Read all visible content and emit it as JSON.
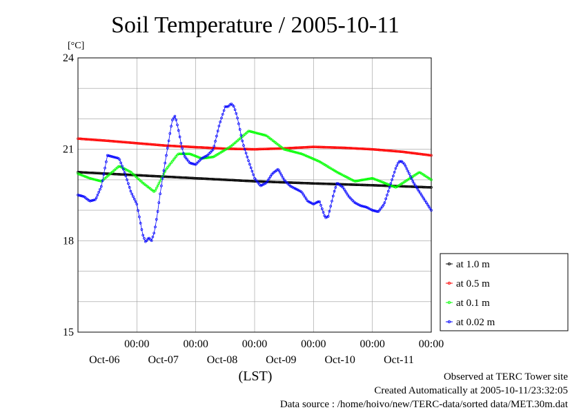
{
  "chart_data": {
    "type": "line",
    "title": "Soil Temperature / 2005-10-11",
    "ylabel": "[°C]",
    "xlabel": "(LST)",
    "ylim": [
      15,
      24
    ],
    "yticks": [
      "15",
      "18",
      "21",
      "24"
    ],
    "xticks": [
      {
        "time": "00:00",
        "date": "Oct-06"
      },
      {
        "time": "00:00",
        "date": "Oct-07"
      },
      {
        "time": "00:00",
        "date": "Oct-08"
      },
      {
        "time": "00:00",
        "date": "Oct-09"
      },
      {
        "time": "00:00",
        "date": "Oct-10"
      },
      {
        "time": "00:00",
        "date": "Oct-11"
      }
    ],
    "x_unit": "days",
    "x_range": [
      -1,
      5
    ],
    "grid": true,
    "legend_position": "bottom-right",
    "series": [
      {
        "name": "at 1.0 m",
        "color": "#000000",
        "x": [
          -1,
          0,
          1,
          2,
          3,
          4,
          5
        ],
        "y": [
          20.25,
          20.15,
          20.05,
          19.95,
          19.88,
          19.82,
          19.75
        ]
      },
      {
        "name": "at 0.5 m",
        "color": "#ff0000",
        "x": [
          -1,
          -0.5,
          0,
          0.5,
          1,
          1.5,
          2,
          2.5,
          3,
          3.5,
          4,
          4.5,
          5
        ],
        "y": [
          21.35,
          21.28,
          21.2,
          21.12,
          21.07,
          21.02,
          21.0,
          21.03,
          21.08,
          21.05,
          21.0,
          20.92,
          20.8
        ]
      },
      {
        "name": "at 0.1 m",
        "color": "#00ff00",
        "x": [
          -1,
          -0.8,
          -0.6,
          -0.45,
          -0.3,
          -0.1,
          0.1,
          0.3,
          0.5,
          0.7,
          0.9,
          1.1,
          1.3,
          1.6,
          1.9,
          2.2,
          2.5,
          2.8,
          3.1,
          3.4,
          3.7,
          4.0,
          4.2,
          4.4,
          4.6,
          4.8,
          5.0
        ],
        "y": [
          20.2,
          20.05,
          19.95,
          20.2,
          20.45,
          20.25,
          19.9,
          19.6,
          20.35,
          20.85,
          20.85,
          20.7,
          20.75,
          21.1,
          21.6,
          21.45,
          21.0,
          20.85,
          20.6,
          20.25,
          19.95,
          20.05,
          19.9,
          19.75,
          20.0,
          20.25,
          20.0
        ]
      },
      {
        "name": "at 0.02 m",
        "color": "#0000ff",
        "x": [
          -1,
          -0.9,
          -0.8,
          -0.7,
          -0.6,
          -0.5,
          -0.4,
          -0.3,
          -0.2,
          -0.1,
          0,
          0.05,
          0.1,
          0.15,
          0.2,
          0.25,
          0.3,
          0.35,
          0.4,
          0.5,
          0.6,
          0.65,
          0.7,
          0.75,
          0.8,
          0.9,
          1.0,
          1.1,
          1.2,
          1.3,
          1.4,
          1.5,
          1.55,
          1.6,
          1.65,
          1.7,
          1.8,
          1.9,
          2.0,
          2.1,
          2.2,
          2.3,
          2.4,
          2.5,
          2.6,
          2.7,
          2.8,
          2.9,
          3.0,
          3.1,
          3.2,
          3.25,
          3.3,
          3.35,
          3.4,
          3.5,
          3.6,
          3.7,
          3.8,
          3.9,
          4.0,
          4.1,
          4.2,
          4.3,
          4.4,
          4.45,
          4.5,
          4.55,
          4.6,
          4.7,
          4.8,
          4.9,
          5.0
        ],
        "y": [
          19.5,
          19.45,
          19.3,
          19.35,
          19.8,
          20.8,
          20.75,
          20.7,
          20.2,
          19.6,
          19.2,
          18.7,
          18.2,
          17.95,
          18.1,
          18.0,
          18.3,
          18.9,
          19.6,
          20.8,
          21.95,
          22.1,
          21.7,
          21.2,
          20.8,
          20.55,
          20.5,
          20.7,
          20.8,
          21.0,
          21.8,
          22.4,
          22.4,
          22.5,
          22.4,
          22.1,
          21.2,
          20.6,
          20.05,
          19.8,
          19.9,
          20.2,
          20.35,
          20.0,
          19.8,
          19.7,
          19.6,
          19.3,
          19.2,
          19.3,
          18.75,
          18.8,
          19.2,
          19.6,
          19.9,
          19.75,
          19.45,
          19.25,
          19.15,
          19.1,
          19.0,
          18.95,
          19.2,
          19.8,
          20.4,
          20.6,
          20.6,
          20.5,
          20.3,
          19.9,
          19.6,
          19.3,
          19.0
        ]
      }
    ]
  },
  "footer": {
    "observed": "Observed at TERC Tower site",
    "created": "Created Automatically at 2005-10-11/23:32:05",
    "source": "Data source : /home/hoivo/new/TERC-data/sorted  data/MET.30m.dat"
  }
}
